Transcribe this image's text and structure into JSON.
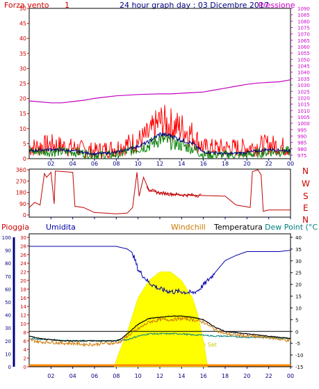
{
  "header": {
    "left_label": "Forza vento",
    "left_unit": "1",
    "title": "24 hour graph day : 03 Dicembre 2017",
    "right_label": "Pressione"
  },
  "colors": {
    "frame": "#000000",
    "gust": "#ff0000",
    "wind": "#008000",
    "wind_avg": "#000080",
    "pressure": "#c000c0",
    "direction": "#c00000",
    "rain_axis": "#cc0000",
    "humidity": "#0000aa",
    "windchill": "#cc7700",
    "temperature": "#000000",
    "dewpoint": "#008080",
    "solar": "#ffff00",
    "tick": "#000080",
    "grid_left": "#cc0000",
    "grid_right": "#cc00cc"
  },
  "x_ticks": [
    "02",
    "04",
    "06",
    "08",
    "10",
    "12",
    "14",
    "16",
    "18",
    "20",
    "22",
    "00"
  ],
  "panel1": {
    "left_ticks": [
      "50",
      "45",
      "40",
      "35",
      "30",
      "25",
      "20",
      "15",
      "10",
      "5",
      "0"
    ],
    "right_ticks": [
      "1090",
      "1085",
      "1080",
      "1075",
      "1070",
      "1065",
      "1060",
      "1055",
      "1050",
      "1045",
      "1040",
      "1035",
      "1030",
      "1025",
      "1020",
      "1015",
      "1010",
      "1005",
      "1000",
      "995",
      "990",
      "985",
      "980",
      "975"
    ]
  },
  "panel2": {
    "left_ticks": [
      "360",
      "270",
      "180",
      "90",
      "0"
    ],
    "compass": [
      "N",
      "W",
      "S",
      "E",
      "N"
    ]
  },
  "panel3": {
    "labels": {
      "rain": "Pioggia",
      "humidity": "Umidita",
      "windchill": "Windchill",
      "temperature": "Temperatura",
      "dewpoint": "Dew Point (°C"
    },
    "hum_ticks": [
      "100",
      "90",
      "80",
      "70",
      "60",
      "50",
      "40",
      "30",
      "20",
      "10",
      "0"
    ],
    "rain_ticks": [
      "30",
      "28",
      "26",
      "24",
      "22",
      "20",
      "18",
      "16",
      "14",
      "12",
      "10",
      "8",
      "6",
      "4",
      "2",
      "0"
    ],
    "temp_ticks": [
      "40",
      "35",
      "30",
      "25",
      "20",
      "15",
      "10",
      "5",
      "0",
      "-5",
      "-10",
      "-15"
    ],
    "sun_set": "Sun Set"
  },
  "chart_data": [
    {
      "type": "line",
      "title": "24 hour graph day : 03 Dicembre 2017",
      "x_unit": "hour",
      "xlim": [
        0,
        24
      ],
      "ylim_left": [
        0,
        50
      ],
      "ylim_right": [
        975,
        1090
      ],
      "series": [
        {
          "name": "Pressione",
          "axis": "right",
          "x": [
            0,
            2,
            3,
            4,
            5,
            6,
            7,
            8,
            9,
            10,
            11,
            12,
            13,
            14,
            15,
            16,
            17,
            18,
            19,
            20,
            21,
            22,
            23,
            24
          ],
          "values": [
            1017.5,
            1016,
            1016,
            1017,
            1018,
            1019.5,
            1020.5,
            1021.5,
            1022,
            1022.5,
            1022.8,
            1023,
            1023,
            1023.5,
            1024,
            1024.5,
            1026,
            1027.5,
            1029,
            1030.5,
            1031.5,
            1032,
            1032.5,
            1034
          ]
        },
        {
          "axis": "left",
          "x": [
            0,
            2,
            4,
            6,
            8,
            9,
            10,
            11,
            12,
            13,
            14,
            15,
            16,
            17,
            18,
            20,
            22,
            24
          ],
          "values": [
            3,
            4,
            3,
            2,
            3,
            4,
            5,
            7,
            11,
            10,
            9,
            7,
            3,
            3,
            3,
            3,
            4,
            3
          ]
        },
        {
          "axis": "left",
          "x": [
            0,
            2,
            4,
            6,
            8,
            9,
            10,
            11,
            12,
            13,
            14,
            15,
            16,
            17,
            18,
            20,
            22,
            24
          ],
          "values": [
            2,
            2,
            2,
            1,
            1,
            2,
            3,
            4,
            6,
            5,
            4,
            3,
            1,
            1,
            1,
            1,
            2,
            2
          ]
        },
        {
          "axis": "left",
          "x": [
            0,
            2,
            4,
            6,
            8,
            9,
            10,
            11,
            12,
            13,
            14,
            15,
            16,
            17,
            18,
            20,
            22,
            24
          ],
          "values": [
            2.5,
            3,
            2.5,
            1.5,
            2,
            3,
            4,
            5.5,
            8,
            7.5,
            6,
            5,
            2,
            2,
            1.5,
            2,
            3,
            2.5
          ]
        }
      ]
    },
    {
      "type": "line",
      "ylim": [
        0,
        360
      ],
      "series": [
        {
          "x": [
            0,
            0.5,
            1,
            1.4,
            1.6,
            2,
            2.3,
            2.4,
            4,
            4.2,
            5,
            6,
            7,
            8,
            9,
            9.5,
            9.9,
            10.1,
            10.5,
            11,
            12,
            14,
            16,
            18,
            19,
            20,
            20.3,
            20.5,
            21,
            21.3,
            21.5,
            22,
            24
          ],
          "values": [
            60,
            100,
            80,
            330,
            300,
            340,
            90,
            350,
            340,
            70,
            60,
            20,
            15,
            10,
            15,
            60,
            340,
            150,
            300,
            200,
            175,
            160,
            155,
            150,
            80,
            65,
            60,
            345,
            360,
            320,
            30,
            40,
            40
          ]
        }
      ]
    },
    {
      "type": "line",
      "xlim": [
        0,
        24
      ],
      "ylim_humidity": [
        0,
        100
      ],
      "ylim_temperature": [
        -15,
        40
      ],
      "ylim_rain": [
        0,
        30
      ],
      "series": [
        {
          "name": "Umidita",
          "x": [
            0,
            2,
            4,
            6,
            8,
            9,
            9.5,
            10,
            10.5,
            11,
            12,
            13,
            14,
            15,
            15.5,
            16,
            17,
            18,
            19,
            20,
            21,
            22,
            23,
            24
          ],
          "values": [
            93,
            93,
            93,
            93,
            93,
            91,
            88,
            75,
            70,
            65,
            60,
            58,
            58,
            57,
            59,
            63,
            72,
            82,
            86,
            89,
            89,
            89,
            89,
            90
          ]
        },
        {
          "name": "Windchill",
          "x": [
            0,
            1,
            2,
            3,
            4,
            5,
            6,
            7,
            8,
            8.5,
            9,
            10,
            11,
            12,
            13,
            14,
            15,
            16,
            17,
            18,
            20,
            22,
            24
          ],
          "values": [
            -3.5,
            -4.5,
            -4.5,
            -5,
            -5,
            -5.5,
            -5.5,
            -5,
            -5,
            -4,
            -2,
            1,
            4,
            5,
            5,
            5.5,
            5,
            4,
            1,
            -1,
            -2,
            -2.5,
            -4
          ]
        },
        {
          "name": "Temperatura",
          "x": [
            0,
            1,
            2,
            3,
            4,
            5,
            6,
            7,
            8,
            8.5,
            9,
            10,
            11,
            12,
            13,
            14,
            15,
            16,
            17,
            18,
            20,
            22,
            24
          ],
          "values": [
            -2,
            -3,
            -3.5,
            -4,
            -4,
            -4,
            -4,
            -4,
            -4,
            -3,
            -1,
            3,
            5.5,
            6,
            6.5,
            6.5,
            6,
            5,
            2,
            0,
            -1,
            -2,
            -3
          ]
        },
        {
          "name": "Dew Point (°C",
          "x": [
            0,
            2,
            4,
            6,
            8,
            9,
            10,
            11,
            12,
            13,
            14,
            15,
            16,
            17,
            18,
            20,
            22,
            24
          ],
          "values": [
            -3,
            -3.5,
            -4,
            -4,
            -4,
            -3.5,
            -2,
            -1,
            -1,
            -1,
            -1,
            -1.5,
            -1.5,
            -2,
            -2,
            -2.5,
            -2.5,
            -3
          ]
        },
        {
          "x": [
            7.8,
            8.2,
            9,
            10,
            11,
            12,
            13,
            14,
            15,
            15.5,
            16,
            16.4
          ],
          "values": [
            0,
            3,
            8,
            16,
            20,
            22,
            22,
            20,
            16,
            12,
            6,
            0
          ]
        }
      ],
      "hlines_temperature": [
        0
      ]
    }
  ]
}
